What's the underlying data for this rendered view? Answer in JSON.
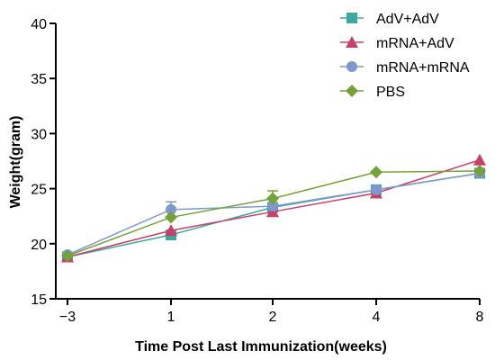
{
  "chart_data": {
    "type": "line",
    "title": "",
    "xlabel": "Time Post Last Immunization(weeks)",
    "ylabel": "Weight(gram)",
    "categories": [
      "−3",
      "1",
      "2",
      "4",
      "8"
    ],
    "ylim": [
      15,
      40
    ],
    "yticks": [
      15,
      20,
      25,
      30,
      35,
      40
    ],
    "grid": false,
    "legend_position": "top-right",
    "series": [
      {
        "name": "AdV+AdV",
        "color": "#3aa9a0",
        "marker": "square",
        "values": [
          18.8,
          20.8,
          23.3,
          24.9,
          26.4
        ]
      },
      {
        "name": "mRNA+AdV",
        "color": "#c8406a",
        "marker": "triangle",
        "values": [
          18.8,
          21.2,
          22.9,
          24.6,
          27.6
        ]
      },
      {
        "name": "mRNA+mRNA",
        "color": "#7f97cc",
        "marker": "circle",
        "values": [
          19.0,
          23.1,
          23.4,
          24.9,
          26.4
        ],
        "error_upper": [
          0,
          0.7,
          0,
          0,
          0
        ]
      },
      {
        "name": "PBS",
        "color": "#74a23a",
        "marker": "diamond",
        "values": [
          18.9,
          22.4,
          24.1,
          26.5,
          26.6
        ],
        "error_upper": [
          0,
          0,
          0.7,
          0,
          0
        ]
      }
    ]
  }
}
